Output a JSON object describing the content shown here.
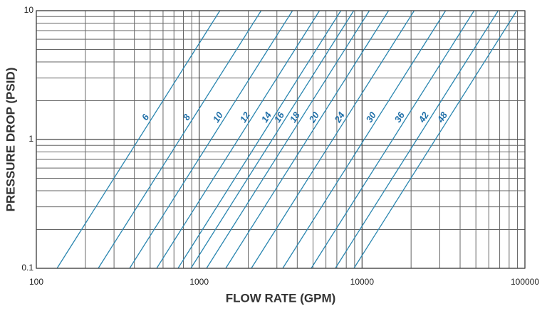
{
  "chart_data": {
    "type": "line",
    "x_label": "FLOW RATE (GPM)",
    "y_label": "PRESSURE DROP (PSID)",
    "xscale": "log",
    "yscale": "log",
    "grid": true,
    "xlim": [
      100,
      100000
    ],
    "ylim": [
      0.1,
      10
    ],
    "xticks": [
      100,
      1000,
      10000,
      100000
    ],
    "yticks": [
      0.1,
      1,
      10
    ],
    "series": [
      {
        "name": "6",
        "color": "#2a86b0",
        "x": [
          134,
          1340
        ],
        "values": [
          0.1,
          10
        ]
      },
      {
        "name": "8",
        "color": "#2a86b0",
        "x": [
          240,
          2400
        ],
        "values": [
          0.1,
          10
        ]
      },
      {
        "name": "10",
        "color": "#2a86b0",
        "x": [
          374,
          3740
        ],
        "values": [
          0.1,
          10
        ]
      },
      {
        "name": "12",
        "color": "#2a86b0",
        "x": [
          548,
          5480
        ],
        "values": [
          0.1,
          10
        ]
      },
      {
        "name": "14",
        "color": "#2a86b0",
        "x": [
          741,
          7410
        ],
        "values": [
          0.1,
          10
        ]
      },
      {
        "name": "16",
        "color": "#2a86b0",
        "x": [
          889,
          8890
        ],
        "values": [
          0.1,
          10
        ]
      },
      {
        "name": "18",
        "color": "#2a86b0",
        "x": [
          1109,
          11090
        ],
        "values": [
          0.1,
          10
        ]
      },
      {
        "name": "20",
        "color": "#2a86b0",
        "x": [
          1455,
          14550
        ],
        "values": [
          0.1,
          10
        ]
      },
      {
        "name": "24",
        "color": "#2a86b0",
        "x": [
          2090,
          20900
        ],
        "values": [
          0.1,
          10
        ]
      },
      {
        "name": "30",
        "color": "#2a86b0",
        "x": [
          3258,
          32580
        ],
        "values": [
          0.1,
          10
        ]
      },
      {
        "name": "36",
        "color": "#2a86b0",
        "x": [
          4875,
          48750
        ],
        "values": [
          0.1,
          10
        ]
      },
      {
        "name": "42",
        "color": "#2a86b0",
        "x": [
          6855,
          68550
        ],
        "values": [
          0.1,
          10
        ]
      },
      {
        "name": "48",
        "color": "#2a86b0",
        "x": [
          8913,
          89130
        ],
        "values": [
          0.1,
          10
        ]
      }
    ]
  }
}
